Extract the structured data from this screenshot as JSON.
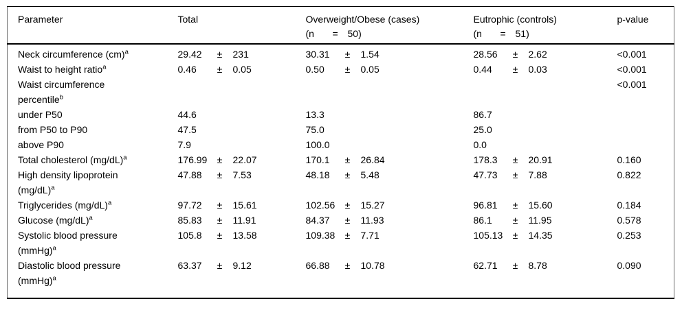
{
  "header": {
    "col_parameter": "Parameter",
    "col_total": "Total",
    "col_cases": "Overweight/Obese (cases)",
    "cases_n_open": "(n",
    "cases_n_eq": "=",
    "cases_n_val": "50)",
    "col_controls": "Eutrophic (controls)",
    "controls_n_open": "(n",
    "controls_n_eq": "=",
    "controls_n_val": "51)",
    "col_pvalue": "p-value"
  },
  "rows": [
    {
      "p1": "Neck circumference (cm)",
      "sup1": "a",
      "p2": "",
      "sup2": "",
      "t_v": "29.42",
      "t_pm": "±",
      "t_sd": "231",
      "c_v": "30.31",
      "c_pm": "±",
      "c_sd": "1.54",
      "e_v": "28.56",
      "e_pm": "±",
      "e_sd": "2.62",
      "pval": "<0.001"
    },
    {
      "p1": "Waist to height ratio",
      "sup1": "a",
      "p2": "",
      "sup2": "",
      "t_v": "0.46",
      "t_pm": "±",
      "t_sd": "0.05",
      "c_v": "0.50",
      "c_pm": "±",
      "c_sd": "0.05",
      "e_v": "0.44",
      "e_pm": "±",
      "e_sd": "0.03",
      "pval": "<0.001"
    },
    {
      "p1": "Waist circumference",
      "sup1": "",
      "p2": "percentile",
      "sup2": "b",
      "t_v": "",
      "t_pm": "",
      "t_sd": "",
      "c_v": "",
      "c_pm": "",
      "c_sd": "",
      "e_v": "",
      "e_pm": "",
      "e_sd": "",
      "pval": "<0.001"
    },
    {
      "p1": "under P50",
      "sup1": "",
      "p2": "",
      "sup2": "",
      "t_v": "44.6",
      "t_pm": "",
      "t_sd": "",
      "c_v": "13.3",
      "c_pm": "",
      "c_sd": "",
      "e_v": "86.7",
      "e_pm": "",
      "e_sd": "",
      "pval": ""
    },
    {
      "p1": "from P50 to P90",
      "sup1": "",
      "p2": "",
      "sup2": "",
      "t_v": "47.5",
      "t_pm": "",
      "t_sd": "",
      "c_v": "75.0",
      "c_pm": "",
      "c_sd": "",
      "e_v": "25.0",
      "e_pm": "",
      "e_sd": "",
      "pval": ""
    },
    {
      "p1": "above P90",
      "sup1": "",
      "p2": "",
      "sup2": "",
      "t_v": "7.9",
      "t_pm": "",
      "t_sd": "",
      "c_v": "100.0",
      "c_pm": "",
      "c_sd": "",
      "e_v": "0.0",
      "e_pm": "",
      "e_sd": "",
      "pval": ""
    },
    {
      "p1": "Total cholesterol (mg/dL)",
      "sup1": "a",
      "p2": "",
      "sup2": "",
      "t_v": "176.99",
      "t_pm": "±",
      "t_sd": "22.07",
      "c_v": "170.1",
      "c_pm": "±",
      "c_sd": "26.84",
      "e_v": "178.3",
      "e_pm": "±",
      "e_sd": "20.91",
      "pval": "0.160"
    },
    {
      "p1": "High density lipoprotein",
      "sup1": "",
      "p2": "(mg/dL)",
      "sup2": "a",
      "t_v": "47.88",
      "t_pm": "±",
      "t_sd": "7.53",
      "c_v": "48.18",
      "c_pm": "±",
      "c_sd": "5.48",
      "e_v": "47.73",
      "e_pm": "±",
      "e_sd": "7.88",
      "pval": "0.822"
    },
    {
      "p1": "Triglycerides (mg/dL)",
      "sup1": "a",
      "p2": "",
      "sup2": "",
      "t_v": "97.72",
      "t_pm": "±",
      "t_sd": "15.61",
      "c_v": "102.56",
      "c_pm": "±",
      "c_sd": "15.27",
      "e_v": "96.81",
      "e_pm": "±",
      "e_sd": "15.60",
      "pval": "0.184"
    },
    {
      "p1": "Glucose (mg/dL)",
      "sup1": "a",
      "p2": "",
      "sup2": "",
      "t_v": "85.83",
      "t_pm": "±",
      "t_sd": "11.91",
      "c_v": "84.37",
      "c_pm": "±",
      "c_sd": "11.93",
      "e_v": "86.1",
      "e_pm": "±",
      "e_sd": "11.95",
      "pval": "0.578"
    },
    {
      "p1": "Systolic blood pressure",
      "sup1": "",
      "p2": "(mmHg)",
      "sup2": "a",
      "t_v": "105.8",
      "t_pm": "±",
      "t_sd": "13.58",
      "c_v": "109.38",
      "c_pm": "±",
      "c_sd": "7.71",
      "e_v": "105.13",
      "e_pm": "±",
      "e_sd": "14.35",
      "pval": "0.253"
    },
    {
      "p1": "Diastolic blood pressure",
      "sup1": "",
      "p2": "(mmHg)",
      "sup2": "a",
      "t_v": "63.37",
      "t_pm": "±",
      "t_sd": "9.12",
      "c_v": "66.88",
      "c_pm": "±",
      "c_sd": "10.78",
      "e_v": "62.71",
      "e_pm": "±",
      "e_sd": "8.78",
      "pval": "0.090"
    }
  ]
}
